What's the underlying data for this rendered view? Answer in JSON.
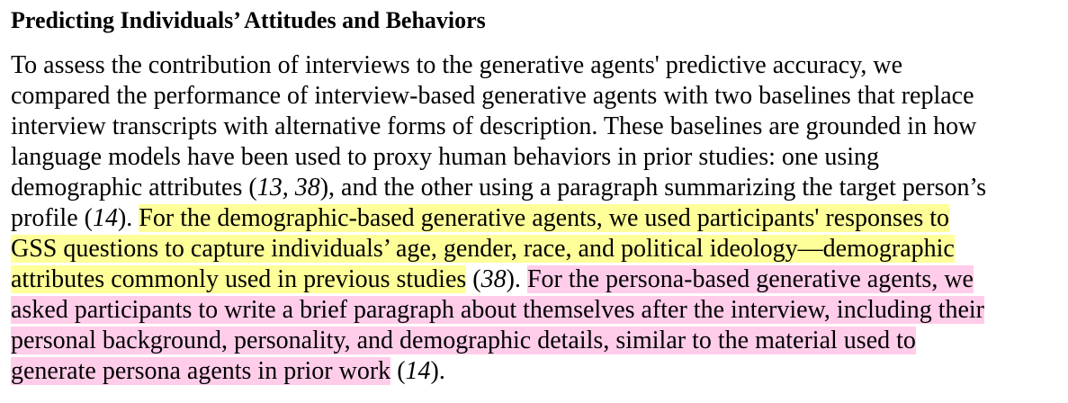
{
  "section": {
    "heading": "Predicting Individuals’ Attitudes and Behaviors"
  },
  "paragraph": {
    "s1_l1": "To assess the contribution of interviews to the generative agents' predictive accuracy, we",
    "s1_l2": "compared the performance of interview-based generative agents with two baselines that replace",
    "s1_l3": "interview transcripts with alternative forms of description. These baselines are grounded in how",
    "s1_l4": "language models have been used to proxy human behaviors in prior studies: one using",
    "s1_l5a": "demographic attributes (",
    "cite1": "13, 38",
    "s1_l5b": "), and the other using a paragraph summarizing the target person’s",
    "s1_l6a": "profile (",
    "cite2": "14",
    "s1_l6b": "). ",
    "hl_y_l6": "For the demographic-based generative agents, we used participants' responses to",
    "hl_y_l7": "GSS questions to capture individuals’ age, gender, race, and political ideology—demographic",
    "hl_y_l8": "attributes commonly used in previous studies",
    "s2_l8a": " (",
    "cite3": "38",
    "s2_l8b": "). ",
    "hl_p_l8": "For the persona-based generative agents, we",
    "hl_p_l9": "asked participants to write a brief paragraph about themselves after the interview, including their",
    "hl_p_l10": "personal background, personality, and demographic details, similar to the material used to",
    "hl_p_l11": "generate persona agents in prior work",
    "s3_l11a": " (",
    "cite4": "14",
    "s3_l11b": ")."
  },
  "highlight_colors": {
    "yellow": "#ffff99",
    "pink": "#ffcdea"
  }
}
